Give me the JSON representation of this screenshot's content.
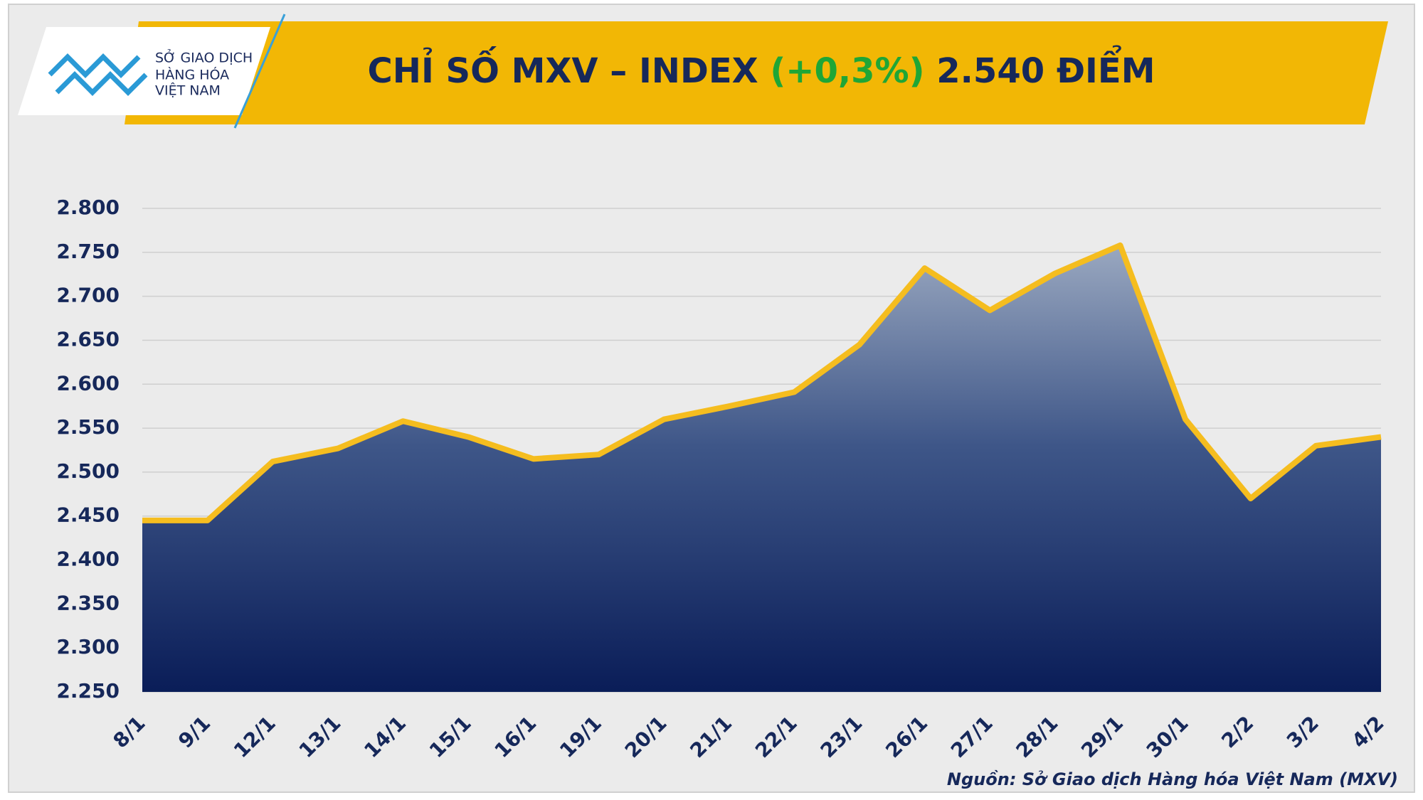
{
  "chart_data": {
    "type": "area",
    "title": "CHỈ SỐ MXV – INDEX",
    "title_change": "(+0,3%)",
    "title_value": "2.540 ĐIỂM",
    "logo_text": [
      "SỞ GIAO DỊCH",
      "HÀNG HÓA",
      "VIỆT NAM"
    ],
    "source": "Nguồn: Sở Giao dịch Hàng hóa Việt Nam (MXV)",
    "categories": [
      "8/1",
      "9/1",
      "12/1",
      "13/1",
      "14/1",
      "15/1",
      "16/1",
      "19/1",
      "20/1",
      "21/1",
      "22/1",
      "23/1",
      "26/1",
      "27/1",
      "28/1",
      "29/1",
      "30/1",
      "2/2",
      "3/2",
      "4/2"
    ],
    "values": [
      2445,
      2445,
      2512,
      2527,
      2558,
      2540,
      2515,
      2520,
      2560,
      2575,
      2591,
      2645,
      2732,
      2684,
      2726,
      2758,
      2560,
      2470,
      2530,
      2540
    ],
    "color": "#f5bd1f",
    "ylim": [
      2250,
      2800
    ],
    "yticks": [
      {
        "value": 2250,
        "label": "2.250"
      },
      {
        "value": 2300,
        "label": "2.300"
      },
      {
        "value": 2350,
        "label": "2.350"
      },
      {
        "value": 2400,
        "label": "2.400"
      },
      {
        "value": 2450,
        "label": "2.450"
      },
      {
        "value": 2500,
        "label": "2.500"
      },
      {
        "value": 2550,
        "label": "2.550"
      },
      {
        "value": 2600,
        "label": "2.600"
      },
      {
        "value": 2650,
        "label": "2.650"
      },
      {
        "value": 2700,
        "label": "2.700"
      },
      {
        "value": 2750,
        "label": "2.750"
      },
      {
        "value": 2800,
        "label": "2.800"
      }
    ],
    "grid": true
  }
}
